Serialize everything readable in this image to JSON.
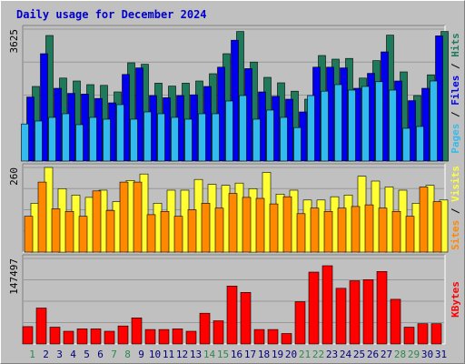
{
  "title": "Daily usage for December 2024",
  "colors": {
    "hits": "#1f7a5c",
    "files": "#0000ee",
    "pages": "#33bbee",
    "visits": "#ffff33",
    "sites": "#ff8800",
    "kbytes": "#ff0000",
    "title": "#0000cc",
    "weekend_day": "#2a8a4a",
    "weekday": "#000080"
  },
  "chart_data": [
    {
      "type": "bar",
      "panel": "hits-files-pages",
      "ymax_label": "3625",
      "ylim": [
        0,
        3625
      ],
      "right_labels": [
        "Pages",
        "Files",
        "Hits"
      ],
      "categories": [
        "1",
        "2",
        "3",
        "4",
        "5",
        "6",
        "7",
        "8",
        "9",
        "10",
        "11",
        "12",
        "13",
        "14",
        "15",
        "16",
        "17",
        "18",
        "19",
        "20",
        "21",
        "22",
        "23",
        "24",
        "25",
        "26",
        "27",
        "28",
        "29",
        "30",
        "31"
      ],
      "series": [
        {
          "name": "Hits",
          "values": [
            2050,
            3450,
            2280,
            2200,
            2100,
            2080,
            1900,
            2700,
            2660,
            2140,
            2060,
            2140,
            2200,
            2400,
            2950,
            3560,
            2720,
            2300,
            2150,
            1920,
            1700,
            2900,
            2800,
            2820,
            2280,
            2760,
            3460,
            2450,
            1800,
            2370,
            3560
          ]
        },
        {
          "name": "Files",
          "values": [
            1760,
            2950,
            2000,
            1860,
            1840,
            1720,
            1600,
            2380,
            2560,
            1800,
            1740,
            1800,
            1820,
            2050,
            2580,
            3320,
            2540,
            1900,
            1780,
            1700,
            1350,
            2580,
            2580,
            2560,
            2000,
            2410,
            3000,
            2200,
            1660,
            2000,
            3440
          ]
        },
        {
          "name": "Pages",
          "values": [
            1020,
            1100,
            1200,
            1300,
            1000,
            1200,
            1150,
            1550,
            1150,
            1350,
            1300,
            1200,
            1150,
            1300,
            1300,
            1650,
            1800,
            1150,
            1400,
            1200,
            920,
            1800,
            1920,
            2100,
            1950,
            2050,
            2180,
            1950,
            900,
            950,
            2200
          ]
        }
      ]
    },
    {
      "type": "bar",
      "panel": "visits-sites",
      "ymax_label": "260",
      "ylim": [
        0,
        260
      ],
      "right_labels": [
        "Sites",
        "Visits"
      ],
      "categories": [
        "1",
        "2",
        "3",
        "4",
        "5",
        "6",
        "7",
        "8",
        "9",
        "10",
        "11",
        "12",
        "13",
        "14",
        "15",
        "16",
        "17",
        "18",
        "19",
        "20",
        "21",
        "22",
        "23",
        "24",
        "25",
        "26",
        "27",
        "28",
        "29",
        "30",
        "31"
      ],
      "series": [
        {
          "name": "Visits",
          "values": [
            150,
            260,
            195,
            175,
            168,
            190,
            155,
            220,
            240,
            150,
            190,
            190,
            223,
            208,
            205,
            212,
            195,
            245,
            178,
            190,
            160,
            160,
            170,
            175,
            233,
            218,
            200,
            190,
            150,
            205,
            160
          ]
        },
        {
          "name": "Sites",
          "values": [
            110,
            215,
            133,
            125,
            110,
            188,
            128,
            215,
            215,
            115,
            125,
            110,
            130,
            150,
            135,
            180,
            168,
            165,
            148,
            170,
            118,
            135,
            125,
            135,
            140,
            145,
            135,
            125,
            110,
            200,
            155
          ]
        }
      ]
    },
    {
      "type": "bar",
      "panel": "kbytes",
      "ymax_label": "147497",
      "ylim": [
        0,
        147497
      ],
      "right_labels": [
        "KBytes"
      ],
      "categories": [
        "1",
        "2",
        "3",
        "4",
        "5",
        "6",
        "7",
        "8",
        "9",
        "10",
        "11",
        "12",
        "13",
        "14",
        "15",
        "16",
        "17",
        "18",
        "19",
        "20",
        "21",
        "22",
        "23",
        "24",
        "25",
        "26",
        "27",
        "28",
        "29",
        "30",
        "31"
      ],
      "series": [
        {
          "name": "KBytes",
          "values": [
            30000,
            62000,
            29000,
            22000,
            26000,
            26000,
            22000,
            31000,
            45000,
            25000,
            25000,
            26000,
            22000,
            53000,
            40000,
            100000,
            89000,
            25000,
            25000,
            18000,
            73000,
            124000,
            135000,
            96000,
            109000,
            111000,
            125000,
            77000,
            29000,
            35000,
            35000
          ]
        }
      ]
    }
  ],
  "weekend_days": [
    "1",
    "7",
    "8",
    "14",
    "15",
    "21",
    "22",
    "28",
    "29"
  ]
}
